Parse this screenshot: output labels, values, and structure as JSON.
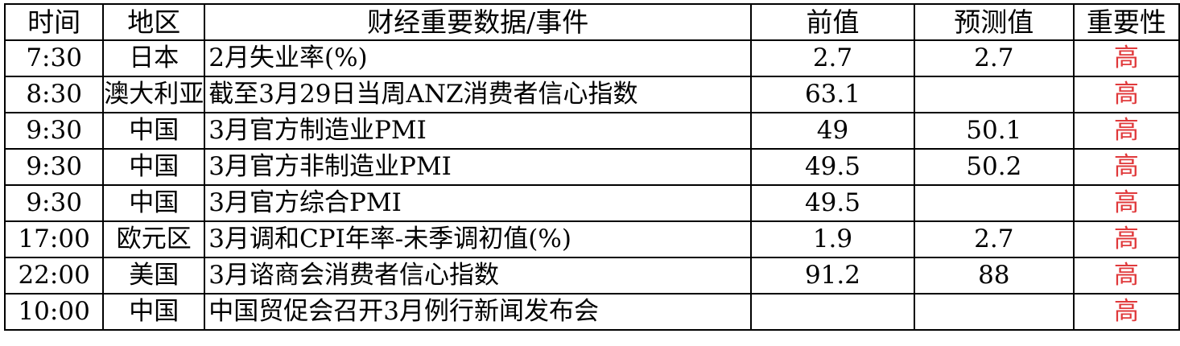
{
  "headers": {
    "time": "时间",
    "region": "地区",
    "event": "财经重要数据/事件",
    "previous": "前值",
    "forecast": "预测值",
    "importance": "重要性"
  },
  "colors": {
    "importance_high": "#e0393b",
    "text": "#000000",
    "border": "#000000"
  },
  "rows": [
    {
      "time": "7:30",
      "region": "日本",
      "event": "2月失业率(%)",
      "previous": "2.7",
      "forecast": "2.7",
      "importance": "高"
    },
    {
      "time": "8:30",
      "region": "澳大利亚",
      "event": "截至3月29日当周ANZ消费者信心指数",
      "previous": "63.1",
      "forecast": "",
      "importance": "高"
    },
    {
      "time": "9:30",
      "region": "中国",
      "event": "3月官方制造业PMI",
      "previous": "49",
      "forecast": "50.1",
      "importance": "高"
    },
    {
      "time": "9:30",
      "region": "中国",
      "event": "3月官方非制造业PMI",
      "previous": "49.5",
      "forecast": "50.2",
      "importance": "高"
    },
    {
      "time": "9:30",
      "region": "中国",
      "event": "3月官方综合PMI",
      "previous": "49.5",
      "forecast": "",
      "importance": "高"
    },
    {
      "time": "17:00",
      "region": "欧元区",
      "event": "3月调和CPI年率-未季调初值(%)",
      "previous": "1.9",
      "forecast": "2.7",
      "importance": "高"
    },
    {
      "time": "22:00",
      "region": "美国",
      "event": "3月谘商会消费者信心指数",
      "previous": "91.2",
      "forecast": "88",
      "importance": "高"
    },
    {
      "time": "10:00",
      "region": "中国",
      "event": "中国贸促会召开3月例行新闻发布会",
      "previous": "",
      "forecast": "",
      "importance": "高"
    }
  ]
}
